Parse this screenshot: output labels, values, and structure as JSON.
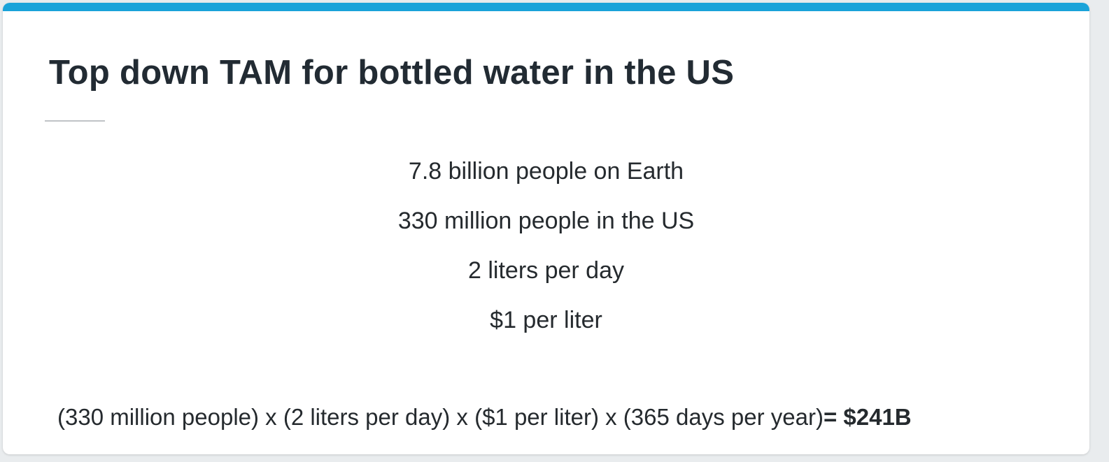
{
  "slide": {
    "title": "Top down TAM for bottled water in the US",
    "facts": [
      "7.8 billion people on Earth",
      "330 million people in the US",
      "2 liters per day",
      "$1 per liter"
    ],
    "formula": {
      "expression": "(330 million people) x (2 liters per day) x ($1 per liter) x (365 days per year)",
      "result": "= $241B"
    },
    "accent_color": "#1aa3d9"
  }
}
